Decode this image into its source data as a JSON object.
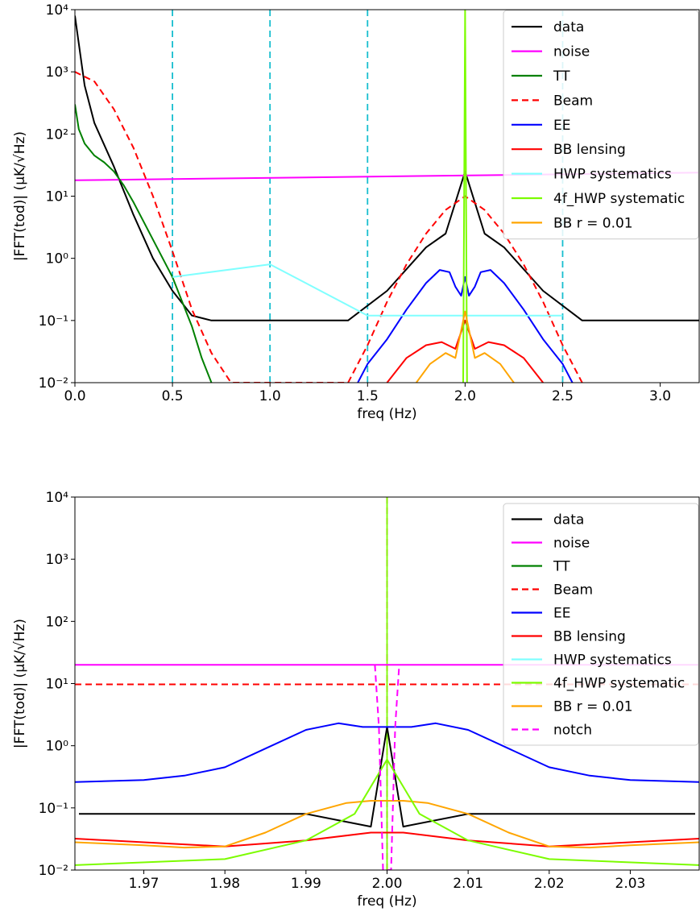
{
  "chart_data": [
    {
      "type": "line",
      "xlabel": "freq (Hz)",
      "ylabel": "|FFT(tod)| (μK/√Hz)",
      "xlim": [
        0.0,
        3.2
      ],
      "ylim": [
        0.01,
        10000
      ],
      "yscale": "log",
      "grid": false,
      "legend_position": "top-right",
      "xticks": [
        0.0,
        0.5,
        1.0,
        1.5,
        2.0,
        2.5,
        3.0
      ],
      "xtick_labels": [
        "0.0",
        "0.5",
        "1.0",
        "1.5",
        "2.0",
        "2.5",
        "3.0"
      ],
      "yticks": [
        0.01,
        0.1,
        1,
        10,
        100,
        1000,
        10000
      ],
      "ytick_labels": [
        "10⁻²",
        "10⁻¹",
        "10⁰",
        "10¹",
        "10²",
        "10³",
        "10⁴"
      ],
      "legend": [
        {
          "label": "data",
          "color": "#000000",
          "dash": "solid"
        },
        {
          "label": "noise",
          "color": "#ff00ff",
          "dash": "solid"
        },
        {
          "label": "TT",
          "color": "#008000",
          "dash": "solid"
        },
        {
          "label": "Beam",
          "color": "#ff0000",
          "dash": "dashed"
        },
        {
          "label": "EE",
          "color": "#0000ff",
          "dash": "solid"
        },
        {
          "label": "BB lensing",
          "color": "#ff0000",
          "dash": "solid"
        },
        {
          "label": "HWP systematics",
          "color": "#80ffff",
          "dash": "solid"
        },
        {
          "label": "4f_HWP systematic",
          "color": "#7cfc00",
          "dash": "solid"
        },
        {
          "label": "BB r = 0.01",
          "color": "#ffa500",
          "dash": "solid"
        }
      ],
      "series": [
        {
          "name": "data",
          "color": "#000000",
          "x": [
            0.0,
            0.05,
            0.1,
            0.2,
            0.3,
            0.4,
            0.5,
            0.6,
            0.7,
            0.8,
            1.0,
            1.2,
            1.4,
            1.6,
            1.8,
            1.9,
            2.0,
            2.1,
            2.2,
            2.4,
            2.6,
            2.8,
            3.0,
            3.2
          ],
          "y": [
            8000,
            600,
            150,
            30,
            5,
            1.0,
            0.3,
            0.12,
            0.1,
            0.1,
            0.1,
            0.1,
            0.1,
            0.3,
            1.5,
            2.5,
            25,
            2.5,
            1.5,
            0.3,
            0.1,
            0.1,
            0.1,
            0.1
          ]
        },
        {
          "name": "noise",
          "color": "#ff00ff",
          "x": [
            0.0,
            3.2
          ],
          "y": [
            18,
            24
          ]
        },
        {
          "name": "TT",
          "color": "#008000",
          "x": [
            0.0,
            0.02,
            0.05,
            0.1,
            0.15,
            0.2,
            0.25,
            0.3,
            0.35,
            0.4,
            0.45,
            0.5,
            0.55,
            0.6,
            0.65,
            0.7
          ],
          "y": [
            300,
            120,
            70,
            45,
            35,
            25,
            15,
            8,
            4,
            2,
            1,
            0.5,
            0.2,
            0.08,
            0.025,
            0.01
          ]
        },
        {
          "name": "Beam",
          "color": "#ff0000",
          "x": [
            0.0,
            0.1,
            0.2,
            0.3,
            0.4,
            0.5,
            0.6,
            0.7,
            0.8,
            1.4,
            1.5,
            1.6,
            1.7,
            1.8,
            1.9,
            2.0,
            2.1,
            2.2,
            2.3,
            2.4,
            2.5,
            2.6
          ],
          "y": [
            1000,
            700,
            250,
            60,
            10,
            1.3,
            0.15,
            0.03,
            0.01,
            0.01,
            0.04,
            0.2,
            0.8,
            2.5,
            6,
            10,
            6,
            2.5,
            0.8,
            0.2,
            0.04,
            0.01
          ]
        },
        {
          "name": "EE",
          "color": "#0000ff",
          "x": [
            1.45,
            1.5,
            1.6,
            1.7,
            1.8,
            1.87,
            1.92,
            1.95,
            1.98,
            2.0,
            2.02,
            2.05,
            2.08,
            2.13,
            2.2,
            2.3,
            2.4,
            2.5,
            2.55
          ],
          "y": [
            0.01,
            0.02,
            0.05,
            0.15,
            0.4,
            0.65,
            0.6,
            0.35,
            0.25,
            0.5,
            0.25,
            0.35,
            0.6,
            0.65,
            0.4,
            0.15,
            0.05,
            0.02,
            0.01
          ]
        },
        {
          "name": "BB lensing",
          "color": "#ff0000",
          "x": [
            1.6,
            1.7,
            1.8,
            1.88,
            1.95,
            2.0,
            2.05,
            2.12,
            2.2,
            2.3,
            2.4
          ],
          "y": [
            0.01,
            0.025,
            0.04,
            0.045,
            0.035,
            0.1,
            0.035,
            0.045,
            0.04,
            0.025,
            0.01
          ]
        },
        {
          "name": "HWP systematics",
          "color": "#80ffff",
          "x": [
            0.5,
            1.0,
            1.5,
            2.5
          ],
          "y": [
            0.5,
            0.8,
            0.12,
            0.12
          ]
        },
        {
          "name": "4f_HWP systematic",
          "color": "#7cfc00",
          "x": [
            1.99,
            2.0,
            2.01
          ],
          "y": [
            0.01,
            10000,
            0.01
          ]
        },
        {
          "name": "BB r = 0.01",
          "color": "#ffa500",
          "x": [
            1.75,
            1.82,
            1.9,
            1.95,
            2.0,
            2.05,
            2.1,
            2.18,
            2.25
          ],
          "y": [
            0.01,
            0.02,
            0.03,
            0.025,
            0.14,
            0.025,
            0.03,
            0.02,
            0.01
          ]
        }
      ],
      "vlines": [
        {
          "x": 0.5,
          "color": "#17becf",
          "dash": "dashed"
        },
        {
          "x": 1.0,
          "color": "#17becf",
          "dash": "dashed"
        },
        {
          "x": 1.5,
          "color": "#17becf",
          "dash": "dashed"
        },
        {
          "x": 2.5,
          "color": "#17becf",
          "dash": "dashed"
        }
      ]
    },
    {
      "type": "line",
      "xlabel": "freq (Hz)",
      "ylabel": "|FFT(tod)| (μK/√Hz)",
      "xlim": [
        1.9615,
        2.0385
      ],
      "ylim": [
        0.01,
        10000
      ],
      "yscale": "log",
      "grid": false,
      "legend_position": "top-right",
      "xticks": [
        1.97,
        1.98,
        1.99,
        2.0,
        2.01,
        2.02,
        2.03
      ],
      "xtick_labels": [
        "1.97",
        "1.98",
        "1.99",
        "2.00",
        "2.01",
        "2.02",
        "2.03"
      ],
      "yticks": [
        0.01,
        0.1,
        1,
        10,
        100,
        1000,
        10000
      ],
      "ytick_labels": [
        "10⁻²",
        "10⁻¹",
        "10⁰",
        "10¹",
        "10²",
        "10³",
        "10⁴"
      ],
      "legend": [
        {
          "label": "data",
          "color": "#000000",
          "dash": "solid"
        },
        {
          "label": "noise",
          "color": "#ff00ff",
          "dash": "solid"
        },
        {
          "label": "TT",
          "color": "#008000",
          "dash": "solid"
        },
        {
          "label": "Beam",
          "color": "#ff0000",
          "dash": "dashed"
        },
        {
          "label": "EE",
          "color": "#0000ff",
          "dash": "solid"
        },
        {
          "label": "BB lensing",
          "color": "#ff0000",
          "dash": "solid"
        },
        {
          "label": "HWP systematics",
          "color": "#80ffff",
          "dash": "solid"
        },
        {
          "label": "4f_HWP systematic",
          "color": "#7cfc00",
          "dash": "solid"
        },
        {
          "label": "BB r = 0.01",
          "color": "#ffa500",
          "dash": "solid"
        },
        {
          "label": "notch",
          "color": "#ff00ff",
          "dash": "dashed"
        }
      ],
      "series": [
        {
          "name": "data",
          "color": "#000000",
          "x": [
            1.962,
            1.97,
            1.98,
            1.99,
            1.998,
            2.0,
            2.002,
            2.01,
            2.02,
            2.03,
            2.038
          ],
          "y": [
            0.08,
            0.08,
            0.08,
            0.08,
            0.05,
            2.0,
            0.05,
            0.08,
            0.08,
            0.08,
            0.08
          ]
        },
        {
          "name": "noise",
          "color": "#ff00ff",
          "x": [
            1.9615,
            2.0385
          ],
          "y": [
            20,
            20
          ]
        },
        {
          "name": "Beam",
          "color": "#ff0000",
          "x": [
            1.9615,
            2.0385
          ],
          "y": [
            9.7,
            9.7
          ]
        },
        {
          "name": "EE",
          "color": "#0000ff",
          "x": [
            1.9615,
            1.97,
            1.975,
            1.98,
            1.985,
            1.99,
            1.994,
            1.997,
            2.003,
            2.006,
            2.01,
            2.015,
            2.02,
            2.025,
            2.03,
            2.0385
          ],
          "y": [
            0.26,
            0.28,
            0.33,
            0.45,
            0.9,
            1.8,
            2.3,
            2.0,
            2.0,
            2.3,
            1.8,
            0.9,
            0.45,
            0.33,
            0.28,
            0.26
          ]
        },
        {
          "name": "BB lensing",
          "color": "#ff0000",
          "x": [
            1.9615,
            1.97,
            1.98,
            1.99,
            1.998,
            2.002,
            2.01,
            2.02,
            2.03,
            2.0385
          ],
          "y": [
            0.032,
            0.028,
            0.024,
            0.03,
            0.04,
            0.04,
            0.03,
            0.024,
            0.028,
            0.032
          ]
        },
        {
          "name": "BB r = 0.01",
          "color": "#ffa500",
          "x": [
            1.9615,
            1.97,
            1.975,
            1.98,
            1.985,
            1.99,
            1.995,
            1.998,
            2.002,
            2.005,
            2.01,
            2.015,
            2.02,
            2.025,
            2.03,
            2.0385
          ],
          "y": [
            0.028,
            0.025,
            0.023,
            0.024,
            0.04,
            0.08,
            0.12,
            0.13,
            0.13,
            0.12,
            0.08,
            0.04,
            0.024,
            0.023,
            0.025,
            0.028
          ]
        },
        {
          "name": "4f_HWP systematic",
          "color": "#7cfc00",
          "x": [
            1.9615,
            1.98,
            1.99,
            1.996,
            2.0,
            2.004,
            2.01,
            2.02,
            2.0385
          ],
          "y": [
            0.012,
            0.015,
            0.03,
            0.08,
            0.6,
            0.08,
            0.03,
            0.015,
            0.012
          ]
        },
        {
          "name": "notch",
          "color": "#ff00ff",
          "x": [
            1.9985,
            1.999,
            1.9995,
            2.0005,
            2.001,
            2.0015
          ],
          "y": [
            20,
            2,
            0.01,
            0.01,
            2,
            20
          ]
        }
      ],
      "vlines": [
        {
          "x": 2.0,
          "color": "#ff0000",
          "dash": "dashed"
        },
        {
          "x": 2.0,
          "color": "#7cfc00",
          "dash": "solid"
        }
      ]
    }
  ]
}
